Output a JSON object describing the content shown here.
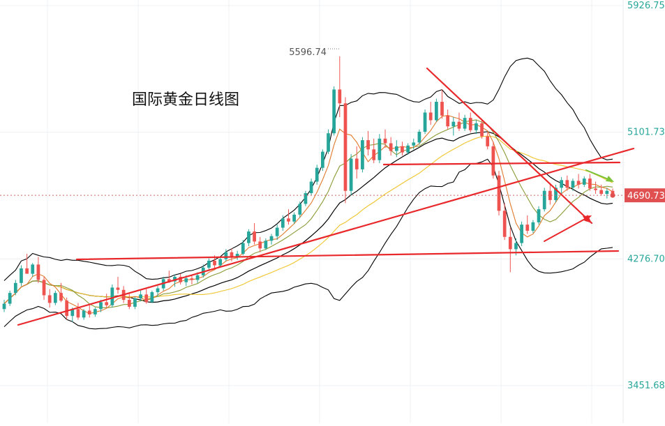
{
  "title": "国际黄金日线图",
  "high_marker": "5596.74",
  "current_price_label": "4690.73",
  "colors": {
    "up": "#26a69a",
    "down": "#ef5350",
    "boll": "#000000",
    "ma_short": "#e07a2c",
    "ma_mid": "#8c9a35",
    "ma_long": "#f0c42a",
    "trendline": "#e8282b",
    "green_arrow": "#7cc33a",
    "price_label_bg": "#e05050",
    "grid": "#eef0f3"
  },
  "chart_data": {
    "type": "candlestick",
    "title": "国际黄金日线图",
    "y_axis_ticks": [
      "5926.75",
      "5101.73",
      "4276.70",
      "3451.68"
    ],
    "ylim": [
      3451.68,
      5926.75
    ],
    "last_price": "4690.73",
    "annotated_high": "5596.74",
    "grid": true,
    "overlays": [
      "Bollinger Bands",
      "moving averages (3)",
      "trend lines"
    ],
    "candles": [
      {
        "o": 3950,
        "h": 4010,
        "l": 3930,
        "c": 3985
      },
      {
        "o": 3985,
        "h": 4070,
        "l": 3970,
        "c": 4055
      },
      {
        "o": 4055,
        "h": 4140,
        "l": 4040,
        "c": 4120
      },
      {
        "o": 4120,
        "h": 4235,
        "l": 4100,
        "c": 4215
      },
      {
        "o": 4215,
        "h": 4310,
        "l": 4180,
        "c": 4180
      },
      {
        "o": 4180,
        "h": 4250,
        "l": 4160,
        "c": 4240
      },
      {
        "o": 4240,
        "h": 4290,
        "l": 4120,
        "c": 4140
      },
      {
        "o": 4140,
        "h": 4160,
        "l": 4010,
        "c": 4040
      },
      {
        "o": 4040,
        "h": 4080,
        "l": 3960,
        "c": 3990
      },
      {
        "o": 3990,
        "h": 4070,
        "l": 3975,
        "c": 4055
      },
      {
        "o": 4055,
        "h": 4120,
        "l": 3995,
        "c": 4005
      },
      {
        "o": 4005,
        "h": 4025,
        "l": 3880,
        "c": 3905
      },
      {
        "o": 3905,
        "h": 3960,
        "l": 3865,
        "c": 3950
      },
      {
        "o": 3950,
        "h": 3990,
        "l": 3880,
        "c": 3895
      },
      {
        "o": 3895,
        "h": 3950,
        "l": 3880,
        "c": 3940
      },
      {
        "o": 3940,
        "h": 3975,
        "l": 3895,
        "c": 3915
      },
      {
        "o": 3915,
        "h": 3960,
        "l": 3900,
        "c": 3950
      },
      {
        "o": 3950,
        "h": 4010,
        "l": 3930,
        "c": 3995
      },
      {
        "o": 3995,
        "h": 4050,
        "l": 3960,
        "c": 3975
      },
      {
        "o": 3975,
        "h": 4110,
        "l": 3960,
        "c": 4090
      },
      {
        "o": 4090,
        "h": 4160,
        "l": 4050,
        "c": 4075
      },
      {
        "o": 4075,
        "h": 4100,
        "l": 3990,
        "c": 4010
      },
      {
        "o": 4010,
        "h": 4050,
        "l": 3950,
        "c": 3965
      },
      {
        "o": 3965,
        "h": 4030,
        "l": 3950,
        "c": 4020
      },
      {
        "o": 4020,
        "h": 4070,
        "l": 4000,
        "c": 4045
      },
      {
        "o": 4045,
        "h": 4080,
        "l": 3985,
        "c": 3995
      },
      {
        "o": 3995,
        "h": 4070,
        "l": 3990,
        "c": 4060
      },
      {
        "o": 4060,
        "h": 4100,
        "l": 4030,
        "c": 4085
      },
      {
        "o": 4085,
        "h": 4160,
        "l": 4070,
        "c": 4145
      },
      {
        "o": 4145,
        "h": 4200,
        "l": 4120,
        "c": 4130
      },
      {
        "o": 4130,
        "h": 4175,
        "l": 4095,
        "c": 4160
      },
      {
        "o": 4160,
        "h": 4180,
        "l": 4110,
        "c": 4125
      },
      {
        "o": 4125,
        "h": 4170,
        "l": 4100,
        "c": 4150
      },
      {
        "o": 4150,
        "h": 4175,
        "l": 4110,
        "c": 4140
      },
      {
        "o": 4140,
        "h": 4190,
        "l": 4120,
        "c": 4170
      },
      {
        "o": 4170,
        "h": 4240,
        "l": 4155,
        "c": 4220
      },
      {
        "o": 4220,
        "h": 4280,
        "l": 4200,
        "c": 4265
      },
      {
        "o": 4265,
        "h": 4300,
        "l": 4215,
        "c": 4235
      },
      {
        "o": 4235,
        "h": 4290,
        "l": 4220,
        "c": 4275
      },
      {
        "o": 4275,
        "h": 4340,
        "l": 4260,
        "c": 4320
      },
      {
        "o": 4320,
        "h": 4345,
        "l": 4260,
        "c": 4285
      },
      {
        "o": 4285,
        "h": 4330,
        "l": 4270,
        "c": 4310
      },
      {
        "o": 4310,
        "h": 4400,
        "l": 4300,
        "c": 4380
      },
      {
        "o": 4380,
        "h": 4470,
        "l": 4360,
        "c": 4455
      },
      {
        "o": 4455,
        "h": 4510,
        "l": 4370,
        "c": 4390
      },
      {
        "o": 4390,
        "h": 4420,
        "l": 4320,
        "c": 4345
      },
      {
        "o": 4345,
        "h": 4410,
        "l": 4335,
        "c": 4395
      },
      {
        "o": 4395,
        "h": 4440,
        "l": 4370,
        "c": 4425
      },
      {
        "o": 4425,
        "h": 4500,
        "l": 4400,
        "c": 4480
      },
      {
        "o": 4480,
        "h": 4560,
        "l": 4460,
        "c": 4540
      },
      {
        "o": 4540,
        "h": 4600,
        "l": 4500,
        "c": 4520
      },
      {
        "o": 4520,
        "h": 4580,
        "l": 4505,
        "c": 4565
      },
      {
        "o": 4565,
        "h": 4650,
        "l": 4545,
        "c": 4635
      },
      {
        "o": 4635,
        "h": 4720,
        "l": 4620,
        "c": 4705
      },
      {
        "o": 4705,
        "h": 4800,
        "l": 4690,
        "c": 4780
      },
      {
        "o": 4780,
        "h": 4890,
        "l": 4760,
        "c": 4870
      },
      {
        "o": 4870,
        "h": 4990,
        "l": 4850,
        "c": 4975
      },
      {
        "o": 4975,
        "h": 5120,
        "l": 4960,
        "c": 5095
      },
      {
        "o": 5095,
        "h": 5400,
        "l": 5080,
        "c": 5380
      },
      {
        "o": 5380,
        "h": 5596.74,
        "l": 5200,
        "c": 5290
      },
      {
        "o": 5290,
        "h": 5330,
        "l": 4640,
        "c": 4720
      },
      {
        "o": 4720,
        "h": 4960,
        "l": 4690,
        "c": 4930
      },
      {
        "o": 4930,
        "h": 5010,
        "l": 4800,
        "c": 4860
      },
      {
        "o": 4860,
        "h": 5070,
        "l": 4840,
        "c": 5050
      },
      {
        "o": 5050,
        "h": 5110,
        "l": 4950,
        "c": 4990
      },
      {
        "o": 4990,
        "h": 5060,
        "l": 4900,
        "c": 4920
      },
      {
        "o": 4920,
        "h": 5090,
        "l": 4900,
        "c": 5060
      },
      {
        "o": 5060,
        "h": 5120,
        "l": 5000,
        "c": 5030
      },
      {
        "o": 5030,
        "h": 5070,
        "l": 4950,
        "c": 4980
      },
      {
        "o": 4980,
        "h": 5050,
        "l": 4940,
        "c": 5010
      },
      {
        "o": 5010,
        "h": 5040,
        "l": 4950,
        "c": 4970
      },
      {
        "o": 4970,
        "h": 5030,
        "l": 4955,
        "c": 5015
      },
      {
        "o": 5015,
        "h": 5060,
        "l": 4990,
        "c": 5035
      },
      {
        "o": 5035,
        "h": 5120,
        "l": 5020,
        "c": 5105
      },
      {
        "o": 5105,
        "h": 5250,
        "l": 5090,
        "c": 5230
      },
      {
        "o": 5230,
        "h": 5300,
        "l": 5150,
        "c": 5180
      },
      {
        "o": 5180,
        "h": 5320,
        "l": 5170,
        "c": 5300
      },
      {
        "o": 5300,
        "h": 5380,
        "l": 5190,
        "c": 5210
      },
      {
        "o": 5210,
        "h": 5250,
        "l": 5120,
        "c": 5140
      },
      {
        "o": 5140,
        "h": 5200,
        "l": 5080,
        "c": 5170
      },
      {
        "o": 5170,
        "h": 5230,
        "l": 5110,
        "c": 5125
      },
      {
        "o": 5125,
        "h": 5215,
        "l": 5110,
        "c": 5195
      },
      {
        "o": 5195,
        "h": 5230,
        "l": 5100,
        "c": 5115
      },
      {
        "o": 5115,
        "h": 5180,
        "l": 5090,
        "c": 5160
      },
      {
        "o": 5160,
        "h": 5190,
        "l": 5060,
        "c": 5075
      },
      {
        "o": 5075,
        "h": 5100,
        "l": 4990,
        "c": 5010
      },
      {
        "o": 5010,
        "h": 5040,
        "l": 4800,
        "c": 4820
      },
      {
        "o": 4820,
        "h": 4850,
        "l": 4560,
        "c": 4590
      },
      {
        "o": 4590,
        "h": 4640,
        "l": 4400,
        "c": 4420
      },
      {
        "o": 4420,
        "h": 4480,
        "l": 4190,
        "c": 4340
      },
      {
        "o": 4340,
        "h": 4410,
        "l": 4300,
        "c": 4380
      },
      {
        "o": 4380,
        "h": 4520,
        "l": 4360,
        "c": 4500
      },
      {
        "o": 4500,
        "h": 4560,
        "l": 4440,
        "c": 4460
      },
      {
        "o": 4460,
        "h": 4530,
        "l": 4445,
        "c": 4515
      },
      {
        "o": 4515,
        "h": 4620,
        "l": 4500,
        "c": 4600
      },
      {
        "o": 4600,
        "h": 4740,
        "l": 4585,
        "c": 4720
      },
      {
        "o": 4720,
        "h": 4770,
        "l": 4630,
        "c": 4660
      },
      {
        "o": 4660,
        "h": 4760,
        "l": 4645,
        "c": 4740
      },
      {
        "o": 4740,
        "h": 4810,
        "l": 4700,
        "c": 4790
      },
      {
        "o": 4790,
        "h": 4820,
        "l": 4720,
        "c": 4740
      },
      {
        "o": 4740,
        "h": 4800,
        "l": 4720,
        "c": 4785
      },
      {
        "o": 4785,
        "h": 4830,
        "l": 4735,
        "c": 4760
      },
      {
        "o": 4760,
        "h": 4815,
        "l": 4745,
        "c": 4800
      },
      {
        "o": 4800,
        "h": 4830,
        "l": 4720,
        "c": 4735
      },
      {
        "o": 4735,
        "h": 4780,
        "l": 4700,
        "c": 4725
      },
      {
        "o": 4725,
        "h": 4760,
        "l": 4690,
        "c": 4700
      },
      {
        "o": 4700,
        "h": 4740,
        "l": 4670,
        "c": 4720
      },
      {
        "o": 4720,
        "h": 4735,
        "l": 4680,
        "c": 4690.73
      }
    ]
  }
}
